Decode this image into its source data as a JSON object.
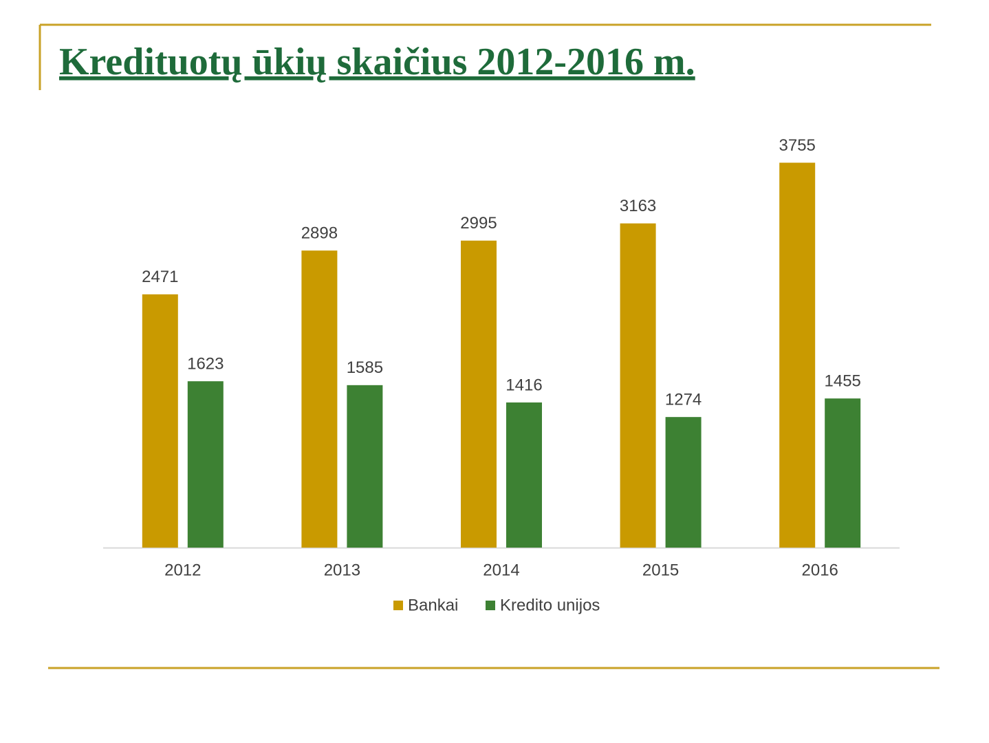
{
  "chart_data": {
    "type": "bar",
    "title": "Kredituotų ūkių skaičius 2012-2016 m.",
    "categories": [
      "2012",
      "2013",
      "2014",
      "2015",
      "2016"
    ],
    "series": [
      {
        "name": "Bankai",
        "color": "#c99a00",
        "values": [
          2471,
          2898,
          2995,
          3163,
          3755
        ]
      },
      {
        "name": "Kredito unijos",
        "color": "#3d8133",
        "values": [
          1623,
          1585,
          1416,
          1274,
          1455
        ]
      }
    ],
    "ylim": [
      0,
      4000
    ],
    "legend": "bottom"
  }
}
